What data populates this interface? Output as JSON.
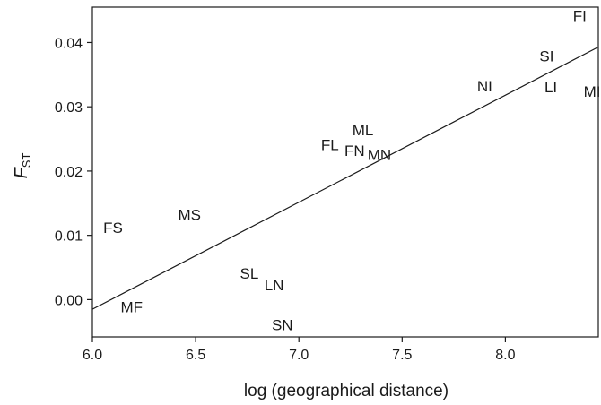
{
  "chart_data": {
    "type": "scatter",
    "title": "",
    "xlabel": "log (geographical distance)",
    "ylabel": "F",
    "ylabel_sub": "ST",
    "xlim": [
      6.0,
      8.45
    ],
    "ylim": [
      -0.0058,
      0.0455
    ],
    "x_ticks": [
      6.0,
      6.5,
      7.0,
      7.5,
      8.0
    ],
    "x_tick_labels": [
      "6.0",
      "6.5",
      "7.0",
      "7.5",
      "8.0"
    ],
    "y_ticks": [
      0.0,
      0.01,
      0.02,
      0.03,
      0.04
    ],
    "y_tick_labels": [
      "0.00",
      "0.01",
      "0.02",
      "0.03",
      "0.04"
    ],
    "grid": false,
    "points": [
      {
        "label": "FI",
        "x": 8.36,
        "y": 0.0442
      },
      {
        "label": "SI",
        "x": 8.2,
        "y": 0.0379
      },
      {
        "label": "NI",
        "x": 7.9,
        "y": 0.0332
      },
      {
        "label": "LI",
        "x": 8.22,
        "y": 0.0331
      },
      {
        "label": "MI",
        "x": 8.42,
        "y": 0.0324
      },
      {
        "label": "ML",
        "x": 7.31,
        "y": 0.0264
      },
      {
        "label": "FL",
        "x": 7.15,
        "y": 0.0241
      },
      {
        "label": "FN",
        "x": 7.27,
        "y": 0.0232
      },
      {
        "label": "MN",
        "x": 7.39,
        "y": 0.0226
      },
      {
        "label": "MS",
        "x": 6.47,
        "y": 0.0132
      },
      {
        "label": "FS",
        "x": 6.1,
        "y": 0.0112
      },
      {
        "label": "SL",
        "x": 6.76,
        "y": 0.0041
      },
      {
        "label": "LN",
        "x": 6.88,
        "y": 0.0023
      },
      {
        "label": "MF",
        "x": 6.19,
        "y": -0.0011
      },
      {
        "label": "SN",
        "x": 6.92,
        "y": -0.0039
      }
    ],
    "regression_line": {
      "x": [
        6.0,
        8.45
      ],
      "y": [
        -0.0015,
        0.0393
      ]
    }
  }
}
